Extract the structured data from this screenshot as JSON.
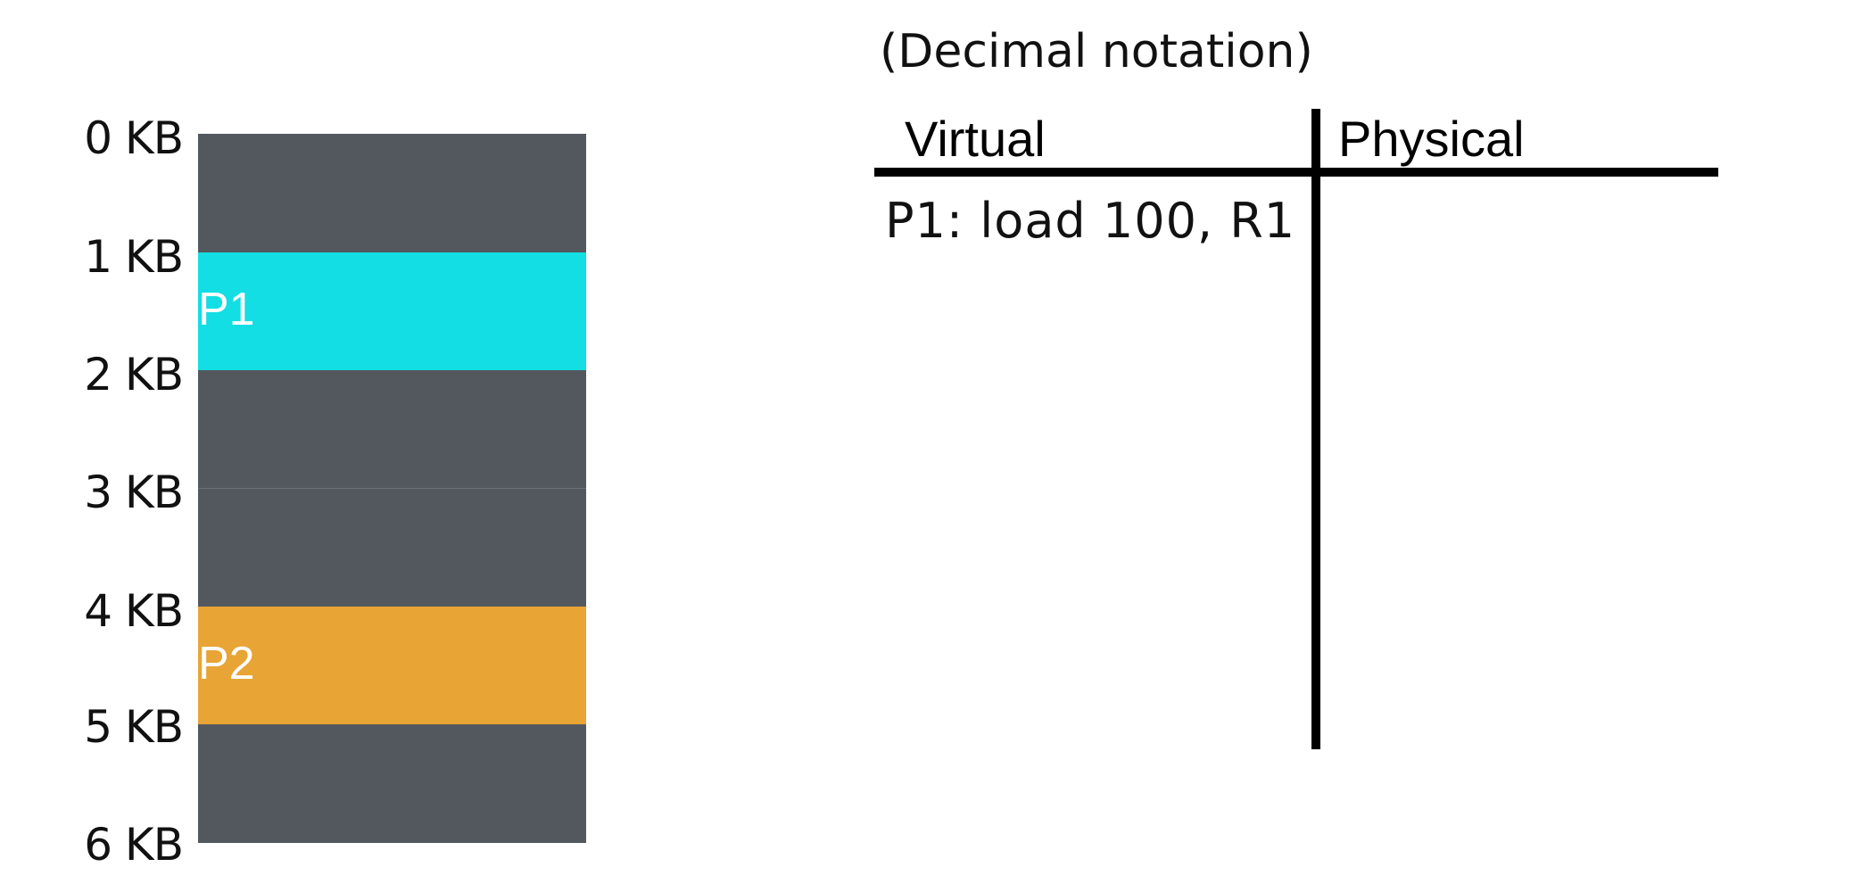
{
  "memory": {
    "labels": [
      "0 KB",
      "1 KB",
      "2 KB",
      "3 KB",
      "4 KB",
      "5 KB",
      "6 KB"
    ],
    "segments": [
      {
        "name": "",
        "kind": "free",
        "start_kb": 0,
        "end_kb": 1
      },
      {
        "name": "P1",
        "kind": "process",
        "start_kb": 1,
        "end_kb": 2
      },
      {
        "name": "",
        "kind": "free",
        "start_kb": 2,
        "end_kb": 4
      },
      {
        "name": "P2",
        "kind": "process",
        "start_kb": 4,
        "end_kb": 5
      },
      {
        "name": "",
        "kind": "free",
        "start_kb": 5,
        "end_kb": 6
      }
    ],
    "colors": {
      "free": "#53585f",
      "p1": "#12dee3",
      "p2": "#e8a434"
    }
  },
  "note": "(Decimal notation)",
  "table": {
    "headers": {
      "virtual": "Virtual",
      "physical": "Physical"
    },
    "rows": [
      {
        "virtual": "P1: load 100, R1",
        "physical": ""
      }
    ]
  }
}
